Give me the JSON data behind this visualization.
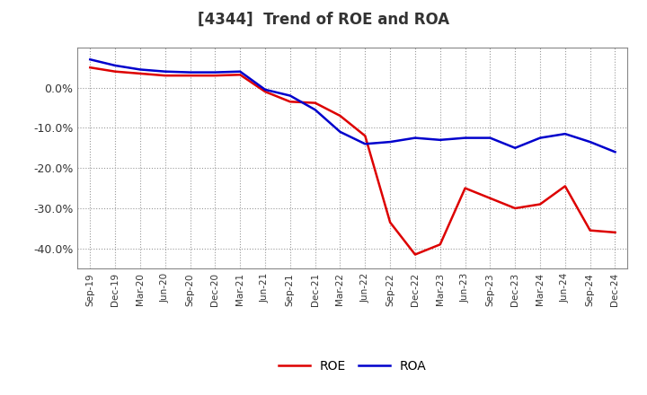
{
  "title": "[4344]  Trend of ROE and ROA",
  "x_labels": [
    "Sep-19",
    "Dec-19",
    "Mar-20",
    "Jun-20",
    "Sep-20",
    "Dec-20",
    "Mar-21",
    "Jun-21",
    "Sep-21",
    "Dec-21",
    "Mar-22",
    "Jun-22",
    "Sep-22",
    "Dec-22",
    "Mar-23",
    "Jun-23",
    "Sep-23",
    "Dec-23",
    "Mar-24",
    "Jun-24",
    "Sep-24",
    "Dec-24"
  ],
  "ROE": [
    5.0,
    4.0,
    3.5,
    3.0,
    3.0,
    3.0,
    3.2,
    -1.0,
    -3.5,
    -3.8,
    -7.0,
    -12.0,
    -33.5,
    -41.5,
    -39.0,
    -25.0,
    -27.5,
    -30.0,
    -29.0,
    -24.5,
    -35.5,
    -36.0
  ],
  "ROA": [
    7.0,
    5.5,
    4.5,
    4.0,
    3.8,
    3.8,
    4.0,
    -0.5,
    -2.0,
    -5.5,
    -11.0,
    -14.0,
    -13.5,
    -12.5,
    -13.0,
    -12.5,
    -12.5,
    -15.0,
    -12.5,
    -11.5,
    -13.5,
    -16.0
  ],
  "roe_color": "#dd0000",
  "roa_color": "#0000cc",
  "ylim": [
    -45,
    10
  ],
  "yticks": [
    0.0,
    -10.0,
    -20.0,
    -30.0,
    -40.0
  ],
  "background_color": "#ffffff",
  "plot_bg_color": "#ffffff",
  "grid_color": "#999999",
  "title_color": "#333333",
  "legend_labels": [
    "ROE",
    "ROA"
  ]
}
